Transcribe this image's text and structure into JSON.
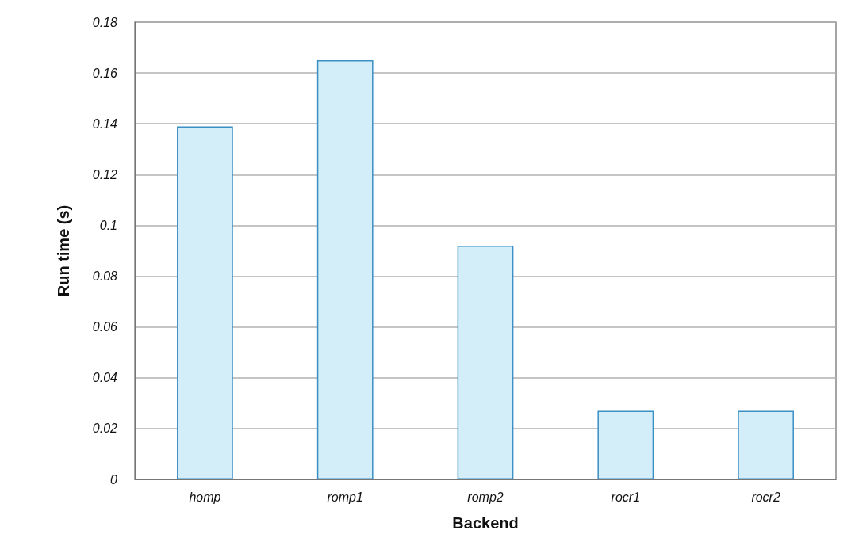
{
  "chart_data": {
    "type": "bar",
    "xlabel": "Backend",
    "ylabel": "Run time (s)",
    "categories": [
      "homp",
      "romp1",
      "romp2",
      "rocr1",
      "rocr2"
    ],
    "values": [
      0.139,
      0.165,
      0.092,
      0.027,
      0.027
    ],
    "color": "#d4eef9",
    "ylim": [
      0,
      0.18
    ],
    "yticks": [
      0,
      0.02,
      0.04,
      0.06,
      0.08,
      0.1,
      0.12,
      0.14,
      0.16,
      0.18
    ],
    "grid": true
  }
}
